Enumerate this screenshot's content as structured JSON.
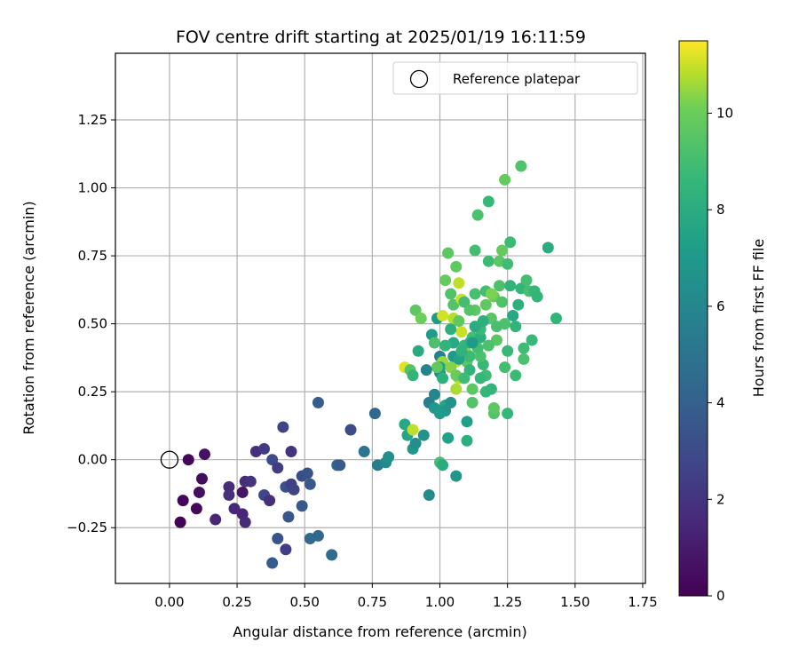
{
  "chart_data": {
    "type": "scatter",
    "title": "FOV centre drift starting at 2025/01/19 16:11:59",
    "xlabel": "Angular distance from reference (arcmin)",
    "ylabel": "Rotation from reference (arcmin)",
    "xlim": [
      -0.2,
      1.76
    ],
    "ylim": [
      -0.455,
      1.495
    ],
    "xticks": [
      0.0,
      0.25,
      0.5,
      0.75,
      1.0,
      1.25,
      1.5,
      1.75
    ],
    "xtick_labels": [
      "0.00",
      "0.25",
      "0.50",
      "0.75",
      "1.00",
      "1.25",
      "1.50",
      "1.75"
    ],
    "yticks": [
      -0.25,
      0.0,
      0.25,
      0.5,
      0.75,
      1.0,
      1.25
    ],
    "ytick_labels": [
      "−0.25",
      "0.00",
      "0.25",
      "0.50",
      "0.75",
      "1.00",
      "1.25"
    ],
    "grid": true,
    "legend": {
      "placement": "top-right",
      "entries": [
        "Reference platepar"
      ]
    },
    "reference_point": {
      "x": 0.0,
      "y": 0.0,
      "label": "Reference platepar"
    },
    "colorbar": {
      "label": "Hours from first FF file",
      "colormap": "viridis",
      "range": [
        0,
        11.5
      ],
      "ticks": [
        0,
        2,
        4,
        6,
        8,
        10
      ],
      "tick_labels": [
        "0",
        "2",
        "4",
        "6",
        "8",
        "10"
      ]
    },
    "points": [
      [
        0.07,
        0.0,
        0.2
      ],
      [
        0.04,
        -0.23,
        0.1
      ],
      [
        0.05,
        -0.15,
        0.2
      ],
      [
        0.1,
        -0.18,
        0.3
      ],
      [
        0.12,
        -0.07,
        0.4
      ],
      [
        0.13,
        0.02,
        0.6
      ],
      [
        0.11,
        -0.12,
        0.5
      ],
      [
        0.17,
        -0.22,
        1.4
      ],
      [
        0.22,
        -0.1,
        1.6
      ],
      [
        0.22,
        -0.13,
        1.8
      ],
      [
        0.24,
        -0.18,
        1.5
      ],
      [
        0.27,
        -0.12,
        0.7
      ],
      [
        0.27,
        -0.2,
        1.4
      ],
      [
        0.28,
        -0.23,
        1.6
      ],
      [
        0.28,
        -0.08,
        1.6
      ],
      [
        0.3,
        -0.08,
        1.9
      ],
      [
        0.32,
        0.03,
        1.8
      ],
      [
        0.35,
        0.04,
        2.2
      ],
      [
        0.35,
        -0.13,
        2.8
      ],
      [
        0.37,
        -0.15,
        1.8
      ],
      [
        0.38,
        0.0,
        2.9
      ],
      [
        0.4,
        -0.03,
        2.3
      ],
      [
        0.42,
        0.12,
        2.6
      ],
      [
        0.43,
        -0.1,
        3.3
      ],
      [
        0.45,
        -0.09,
        2.5
      ],
      [
        0.45,
        0.03,
        1.9
      ],
      [
        0.46,
        -0.11,
        2.6
      ],
      [
        0.44,
        -0.21,
        3.5
      ],
      [
        0.38,
        -0.38,
        3.6
      ],
      [
        0.4,
        -0.29,
        3.4
      ],
      [
        0.43,
        -0.33,
        2.4
      ],
      [
        0.49,
        -0.17,
        3.6
      ],
      [
        0.49,
        -0.06,
        3.1
      ],
      [
        0.51,
        -0.05,
        3.3
      ],
      [
        0.52,
        -0.09,
        3.6
      ],
      [
        0.52,
        -0.29,
        4.4
      ],
      [
        0.55,
        0.21,
        3.8
      ],
      [
        0.55,
        -0.28,
        4.3
      ],
      [
        0.6,
        -0.35,
        4.6
      ],
      [
        0.62,
        -0.02,
        4.2
      ],
      [
        0.63,
        -0.02,
        3.7
      ],
      [
        0.67,
        0.11,
        2.9
      ],
      [
        0.72,
        0.03,
        5.1
      ],
      [
        0.76,
        0.17,
        4.3
      ],
      [
        0.77,
        -0.02,
        5.4
      ],
      [
        0.8,
        -0.01,
        6.1
      ],
      [
        0.81,
        0.01,
        6.4
      ],
      [
        0.87,
        0.13,
        7.7
      ],
      [
        0.88,
        0.09,
        7.5
      ],
      [
        0.9,
        0.11,
        10.9
      ],
      [
        0.9,
        0.04,
        6.8
      ],
      [
        0.91,
        0.06,
        6.4
      ],
      [
        0.91,
        0.55,
        9.6
      ],
      [
        0.93,
        0.52,
        10.0
      ],
      [
        0.94,
        0.09,
        6.6
      ],
      [
        0.96,
        -0.13,
        6.2
      ],
      [
        0.87,
        0.34,
        11.2
      ],
      [
        0.89,
        0.33,
        9.4
      ],
      [
        0.9,
        0.31,
        8.5
      ],
      [
        0.92,
        0.4,
        7.9
      ],
      [
        0.96,
        0.21,
        5.6
      ],
      [
        0.97,
        0.46,
        7.1
      ],
      [
        0.98,
        0.43,
        9.2
      ],
      [
        0.98,
        0.24,
        6.0
      ],
      [
        0.99,
        0.52,
        6.9
      ],
      [
        1.0,
        0.32,
        6.5
      ],
      [
        1.0,
        0.38,
        5.7
      ],
      [
        1.01,
        0.3,
        8.2
      ],
      [
        1.01,
        0.53,
        11.1
      ],
      [
        1.01,
        0.36,
        10.5
      ],
      [
        1.02,
        0.2,
        7.6
      ],
      [
        1.03,
        0.08,
        7.4
      ],
      [
        1.02,
        0.18,
        6.8
      ],
      [
        1.0,
        -0.01,
        9.0
      ],
      [
        1.01,
        -0.02,
        8.0
      ],
      [
        1.02,
        0.66,
        9.8
      ],
      [
        1.03,
        0.76,
        9.6
      ],
      [
        1.04,
        0.61,
        9.3
      ],
      [
        1.05,
        0.57,
        9.4
      ],
      [
        1.05,
        0.52,
        10.8
      ],
      [
        1.06,
        0.71,
        9.7
      ],
      [
        1.06,
        0.36,
        11.0
      ],
      [
        1.06,
        0.26,
        10.7
      ],
      [
        1.06,
        -0.06,
        6.8
      ],
      [
        1.07,
        0.3,
        10.9
      ],
      [
        1.07,
        0.65,
        10.9
      ],
      [
        1.08,
        0.59,
        11.0
      ],
      [
        1.08,
        0.47,
        11.0
      ],
      [
        1.09,
        0.42,
        8.6
      ],
      [
        1.1,
        0.39,
        10.3
      ],
      [
        1.1,
        0.14,
        7.3
      ],
      [
        1.1,
        0.07,
        8.1
      ],
      [
        1.1,
        0.36,
        9.6
      ],
      [
        1.11,
        0.38,
        8.8
      ],
      [
        1.11,
        0.33,
        8.4
      ],
      [
        1.12,
        0.45,
        9.0
      ],
      [
        1.12,
        0.21,
        9.4
      ],
      [
        1.13,
        0.55,
        9.6
      ],
      [
        1.13,
        0.61,
        9.1
      ],
      [
        1.13,
        0.77,
        9.0
      ],
      [
        1.14,
        0.9,
        9.2
      ],
      [
        1.15,
        0.45,
        8.2
      ],
      [
        1.15,
        0.48,
        8.8
      ],
      [
        1.16,
        0.35,
        8.7
      ],
      [
        1.17,
        0.25,
        8.6
      ],
      [
        1.17,
        0.31,
        8.9
      ],
      [
        1.17,
        0.62,
        9.0
      ],
      [
        1.18,
        0.73,
        8.8
      ],
      [
        1.18,
        0.95,
        8.7
      ],
      [
        1.19,
        0.52,
        9.5
      ],
      [
        1.2,
        0.17,
        9.4
      ],
      [
        1.2,
        0.19,
        9.6
      ],
      [
        1.2,
        0.6,
        9.9
      ],
      [
        1.21,
        0.44,
        9.5
      ],
      [
        1.22,
        0.73,
        9.6
      ],
      [
        1.22,
        0.64,
        9.2
      ],
      [
        1.23,
        0.77,
        9.8
      ],
      [
        1.24,
        1.03,
        9.8
      ],
      [
        1.24,
        0.5,
        9.2
      ],
      [
        1.24,
        0.34,
        9.0
      ],
      [
        1.25,
        0.72,
        8.9
      ],
      [
        1.25,
        0.17,
        8.6
      ],
      [
        1.25,
        0.4,
        8.7
      ],
      [
        1.26,
        0.64,
        8.4
      ],
      [
        1.26,
        0.8,
        8.8
      ],
      [
        1.27,
        0.53,
        7.7
      ],
      [
        1.28,
        0.49,
        8.4
      ],
      [
        1.28,
        0.31,
        8.8
      ],
      [
        1.29,
        0.57,
        8.2
      ],
      [
        1.3,
        1.08,
        9.3
      ],
      [
        1.3,
        0.63,
        8.5
      ],
      [
        1.31,
        0.41,
        8.9
      ],
      [
        1.31,
        0.37,
        9.2
      ],
      [
        1.32,
        0.66,
        9.0
      ],
      [
        1.33,
        0.62,
        9.1
      ],
      [
        1.34,
        0.44,
        8.7
      ],
      [
        1.35,
        0.62,
        8.6
      ],
      [
        1.36,
        0.6,
        8.5
      ],
      [
        1.4,
        0.78,
        8.0
      ],
      [
        1.43,
        0.52,
        8.5
      ],
      [
        1.11,
        0.43,
        8.3
      ],
      [
        1.13,
        0.49,
        8.0
      ],
      [
        1.15,
        0.3,
        8.6
      ],
      [
        1.18,
        0.42,
        9.2
      ],
      [
        1.19,
        0.26,
        8.5
      ],
      [
        1.21,
        0.49,
        9.1
      ],
      [
        1.09,
        0.58,
        9.0
      ],
      [
        1.11,
        0.55,
        9.4
      ],
      [
        1.04,
        0.48,
        8.1
      ],
      [
        1.05,
        0.43,
        7.8
      ],
      [
        1.05,
        0.38,
        7.0
      ],
      [
        1.07,
        0.37,
        7.4
      ],
      [
        1.08,
        0.4,
        8.3
      ],
      [
        1.02,
        0.42,
        8.4
      ],
      [
        1.0,
        0.34,
        7.2
      ],
      [
        0.98,
        0.19,
        6.9
      ],
      [
        1.0,
        0.17,
        7.0
      ],
      [
        0.99,
        0.34,
        9.7
      ],
      [
        1.04,
        0.34,
        10.3
      ],
      [
        1.06,
        0.31,
        9.9
      ],
      [
        1.09,
        0.3,
        8.9
      ],
      [
        1.15,
        0.38,
        9.2
      ],
      [
        1.17,
        0.57,
        9.7
      ],
      [
        1.19,
        0.61,
        10.2
      ],
      [
        1.14,
        0.41,
        9.0
      ],
      [
        1.23,
        0.58,
        9.3
      ],
      [
        1.12,
        0.26,
        9.6
      ],
      [
        1.07,
        0.51,
        9.7
      ],
      [
        0.95,
        0.33,
        5.9
      ],
      [
        1.04,
        0.21,
        6.6
      ],
      [
        1.12,
        0.43,
        7.1
      ],
      [
        1.16,
        0.51,
        8.2
      ]
    ]
  }
}
